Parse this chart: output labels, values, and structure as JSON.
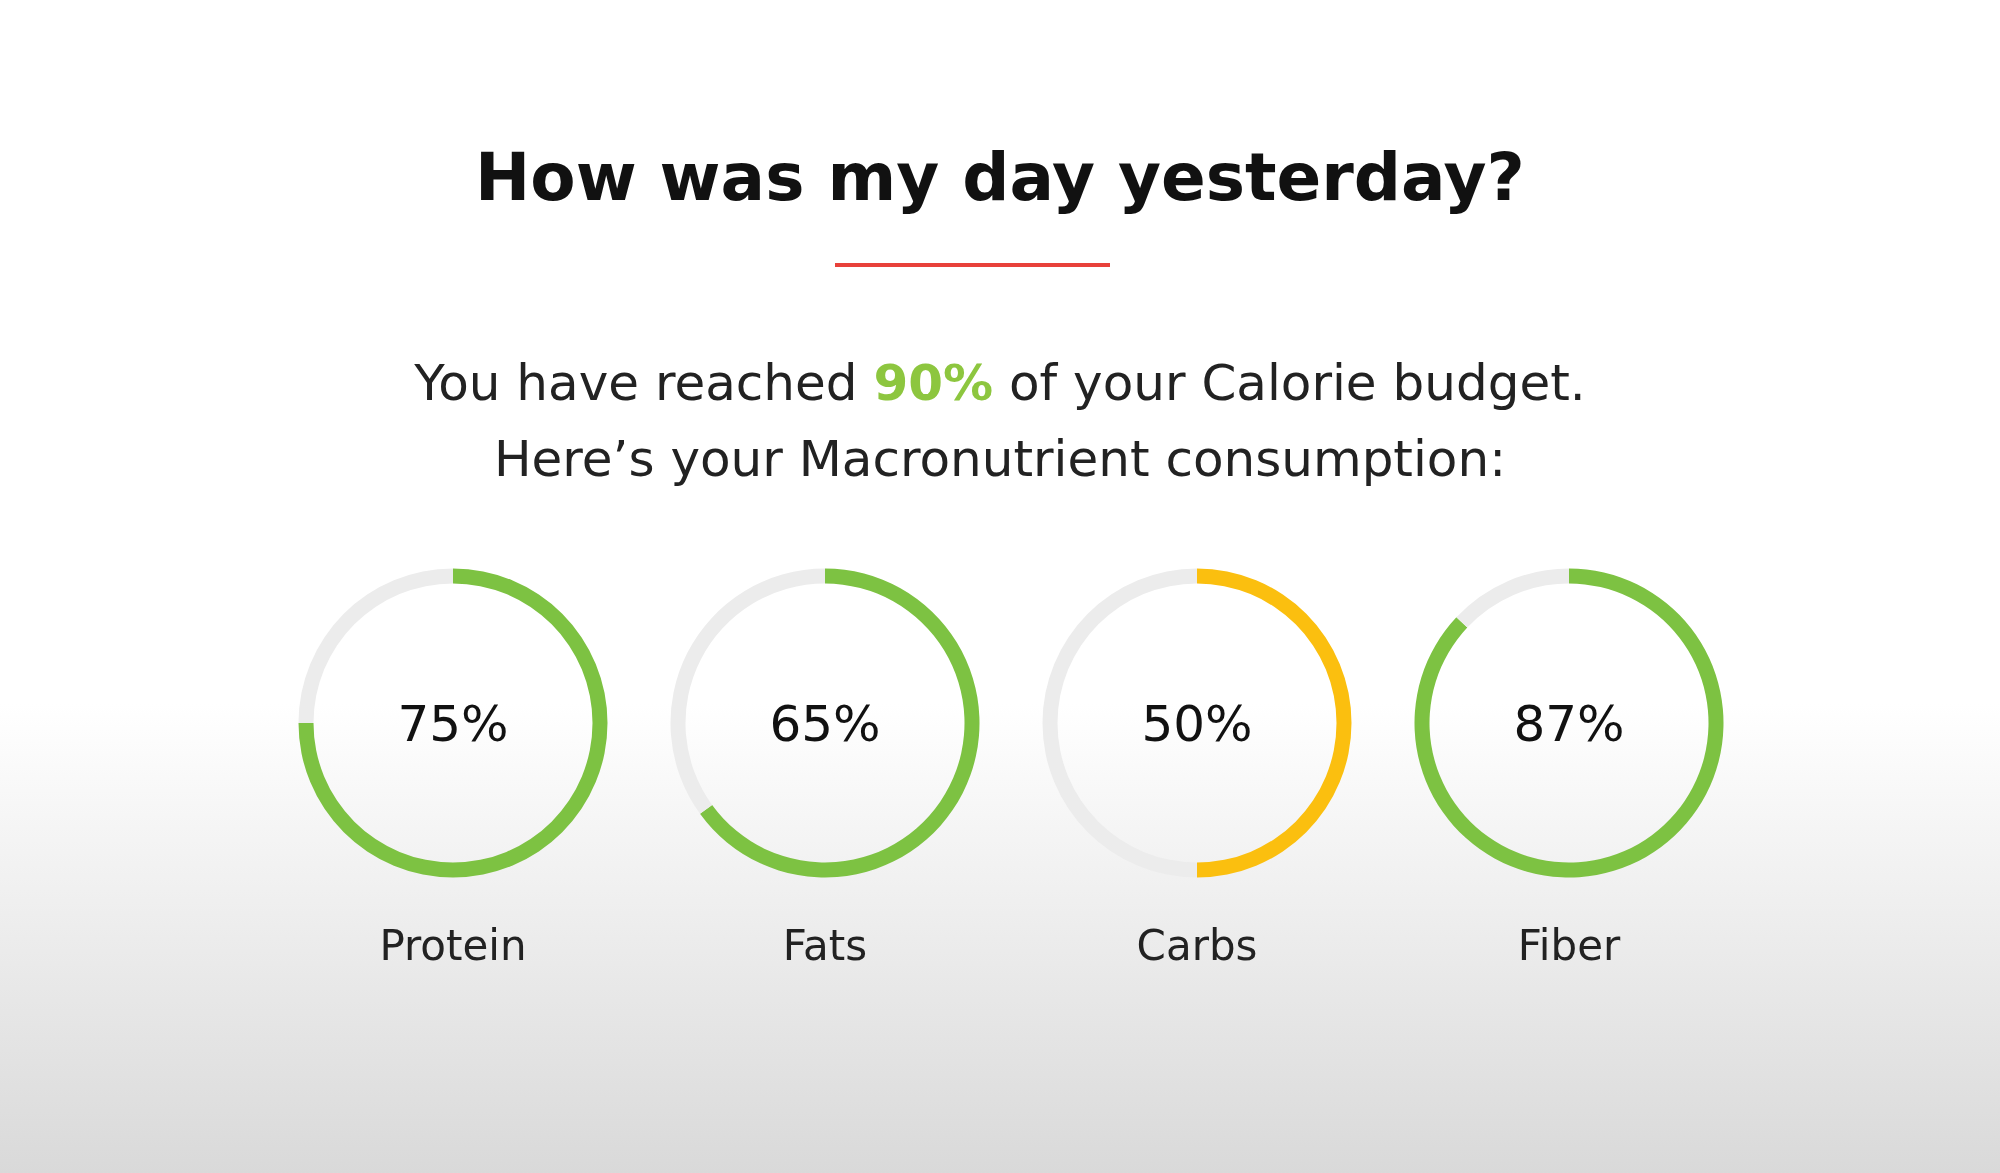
{
  "chart_data": [
    {
      "type": "other",
      "title": "How was my day yesterday?",
      "subtitle": "You have reached 90% of your Calorie budget.\nHere’s your Macronutrient consumption:"
    },
    {
      "type": "donut",
      "title": "Protein",
      "categories": [
        null,
        null
      ],
      "values": [
        75,
        25
      ],
      "colors": [
        "#7dc242",
        "#ececec"
      ],
      "value_labels": [
        "75%",
        null
      ]
    },
    {
      "type": "donut",
      "title": "Fats",
      "categories": [
        null,
        null
      ],
      "values": [
        65,
        35
      ],
      "colors": [
        "#7dc242",
        "#ececec"
      ],
      "value_labels": [
        "65%",
        null
      ]
    },
    {
      "type": "donut",
      "title": "Carbs",
      "categories": [
        null,
        null
      ],
      "values": [
        50,
        50
      ],
      "colors": [
        "#fbbf0f",
        "#ececec"
      ],
      "value_labels": [
        "50%",
        null
      ]
    },
    {
      "type": "donut",
      "title": "Fiber",
      "categories": [
        null,
        null
      ],
      "values": [
        87,
        13
      ],
      "colors": [
        "#7dc242",
        "#ececec"
      ],
      "value_labels": [
        "87%",
        null
      ]
    }
  ]
}
